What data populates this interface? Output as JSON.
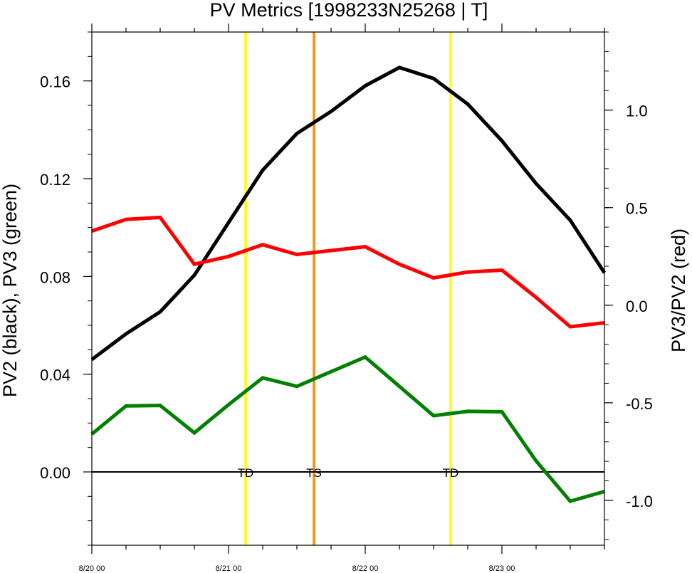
{
  "chart_data": {
    "type": "line",
    "title": "PV Metrics [1998233N25268 | T]",
    "xlabel": "",
    "ylabel_left": "PV2 (black), PV3 (green)",
    "ylabel_right": "PV3/PV2 (red)",
    "x_tick_labels": [
      "8/20 00",
      "8/21 00",
      "8/22 00",
      "8/23 00"
    ],
    "x_hours": [
      0,
      6,
      12,
      18,
      24,
      30,
      36,
      42,
      48,
      54,
      60,
      66,
      72,
      78,
      84,
      90
    ],
    "xlim_hours": [
      0,
      90
    ],
    "ylim_left": [
      -0.03,
      0.18
    ],
    "yticks_left": [
      "0.16",
      "0.12",
      "0.08",
      "0.04",
      "0.00"
    ],
    "ylim_right": [
      -1.23,
      1.4
    ],
    "yticks_right": [
      "1.0",
      "0.5",
      "0.0",
      "-0.5",
      "-1.0"
    ],
    "grid": false,
    "zero_line": true,
    "series": [
      {
        "name": "PV2",
        "axis": "left",
        "color": "#000000",
        "values": [
          0.046,
          0.0565,
          0.0655,
          0.0805,
          0.102,
          0.1235,
          0.1385,
          0.1475,
          0.158,
          0.1655,
          0.161,
          0.1505,
          0.1355,
          0.118,
          0.103,
          0.0815
        ]
      },
      {
        "name": "PV3",
        "axis": "left",
        "color": "#008000",
        "values": [
          0.0155,
          0.027,
          0.0272,
          0.016,
          0.0275,
          0.0385,
          0.035,
          0.041,
          0.047,
          0.035,
          0.023,
          0.0248,
          0.0246,
          0.0045,
          -0.012,
          -0.008
        ]
      },
      {
        "name": "PV3/PV2",
        "axis": "right",
        "color": "#ff0000",
        "values": [
          0.38,
          0.44,
          0.45,
          0.21,
          0.25,
          0.31,
          0.26,
          0.28,
          0.3,
          0.21,
          0.14,
          0.17,
          0.18,
          0.04,
          -0.11,
          -0.09
        ]
      }
    ],
    "events": [
      {
        "label": "TD",
        "hour": 27,
        "color": "#ffff00"
      },
      {
        "label": "TS",
        "hour": 39,
        "color": "#ff8c00"
      },
      {
        "label": "TD",
        "hour": 63,
        "color": "#ffff00"
      }
    ]
  }
}
